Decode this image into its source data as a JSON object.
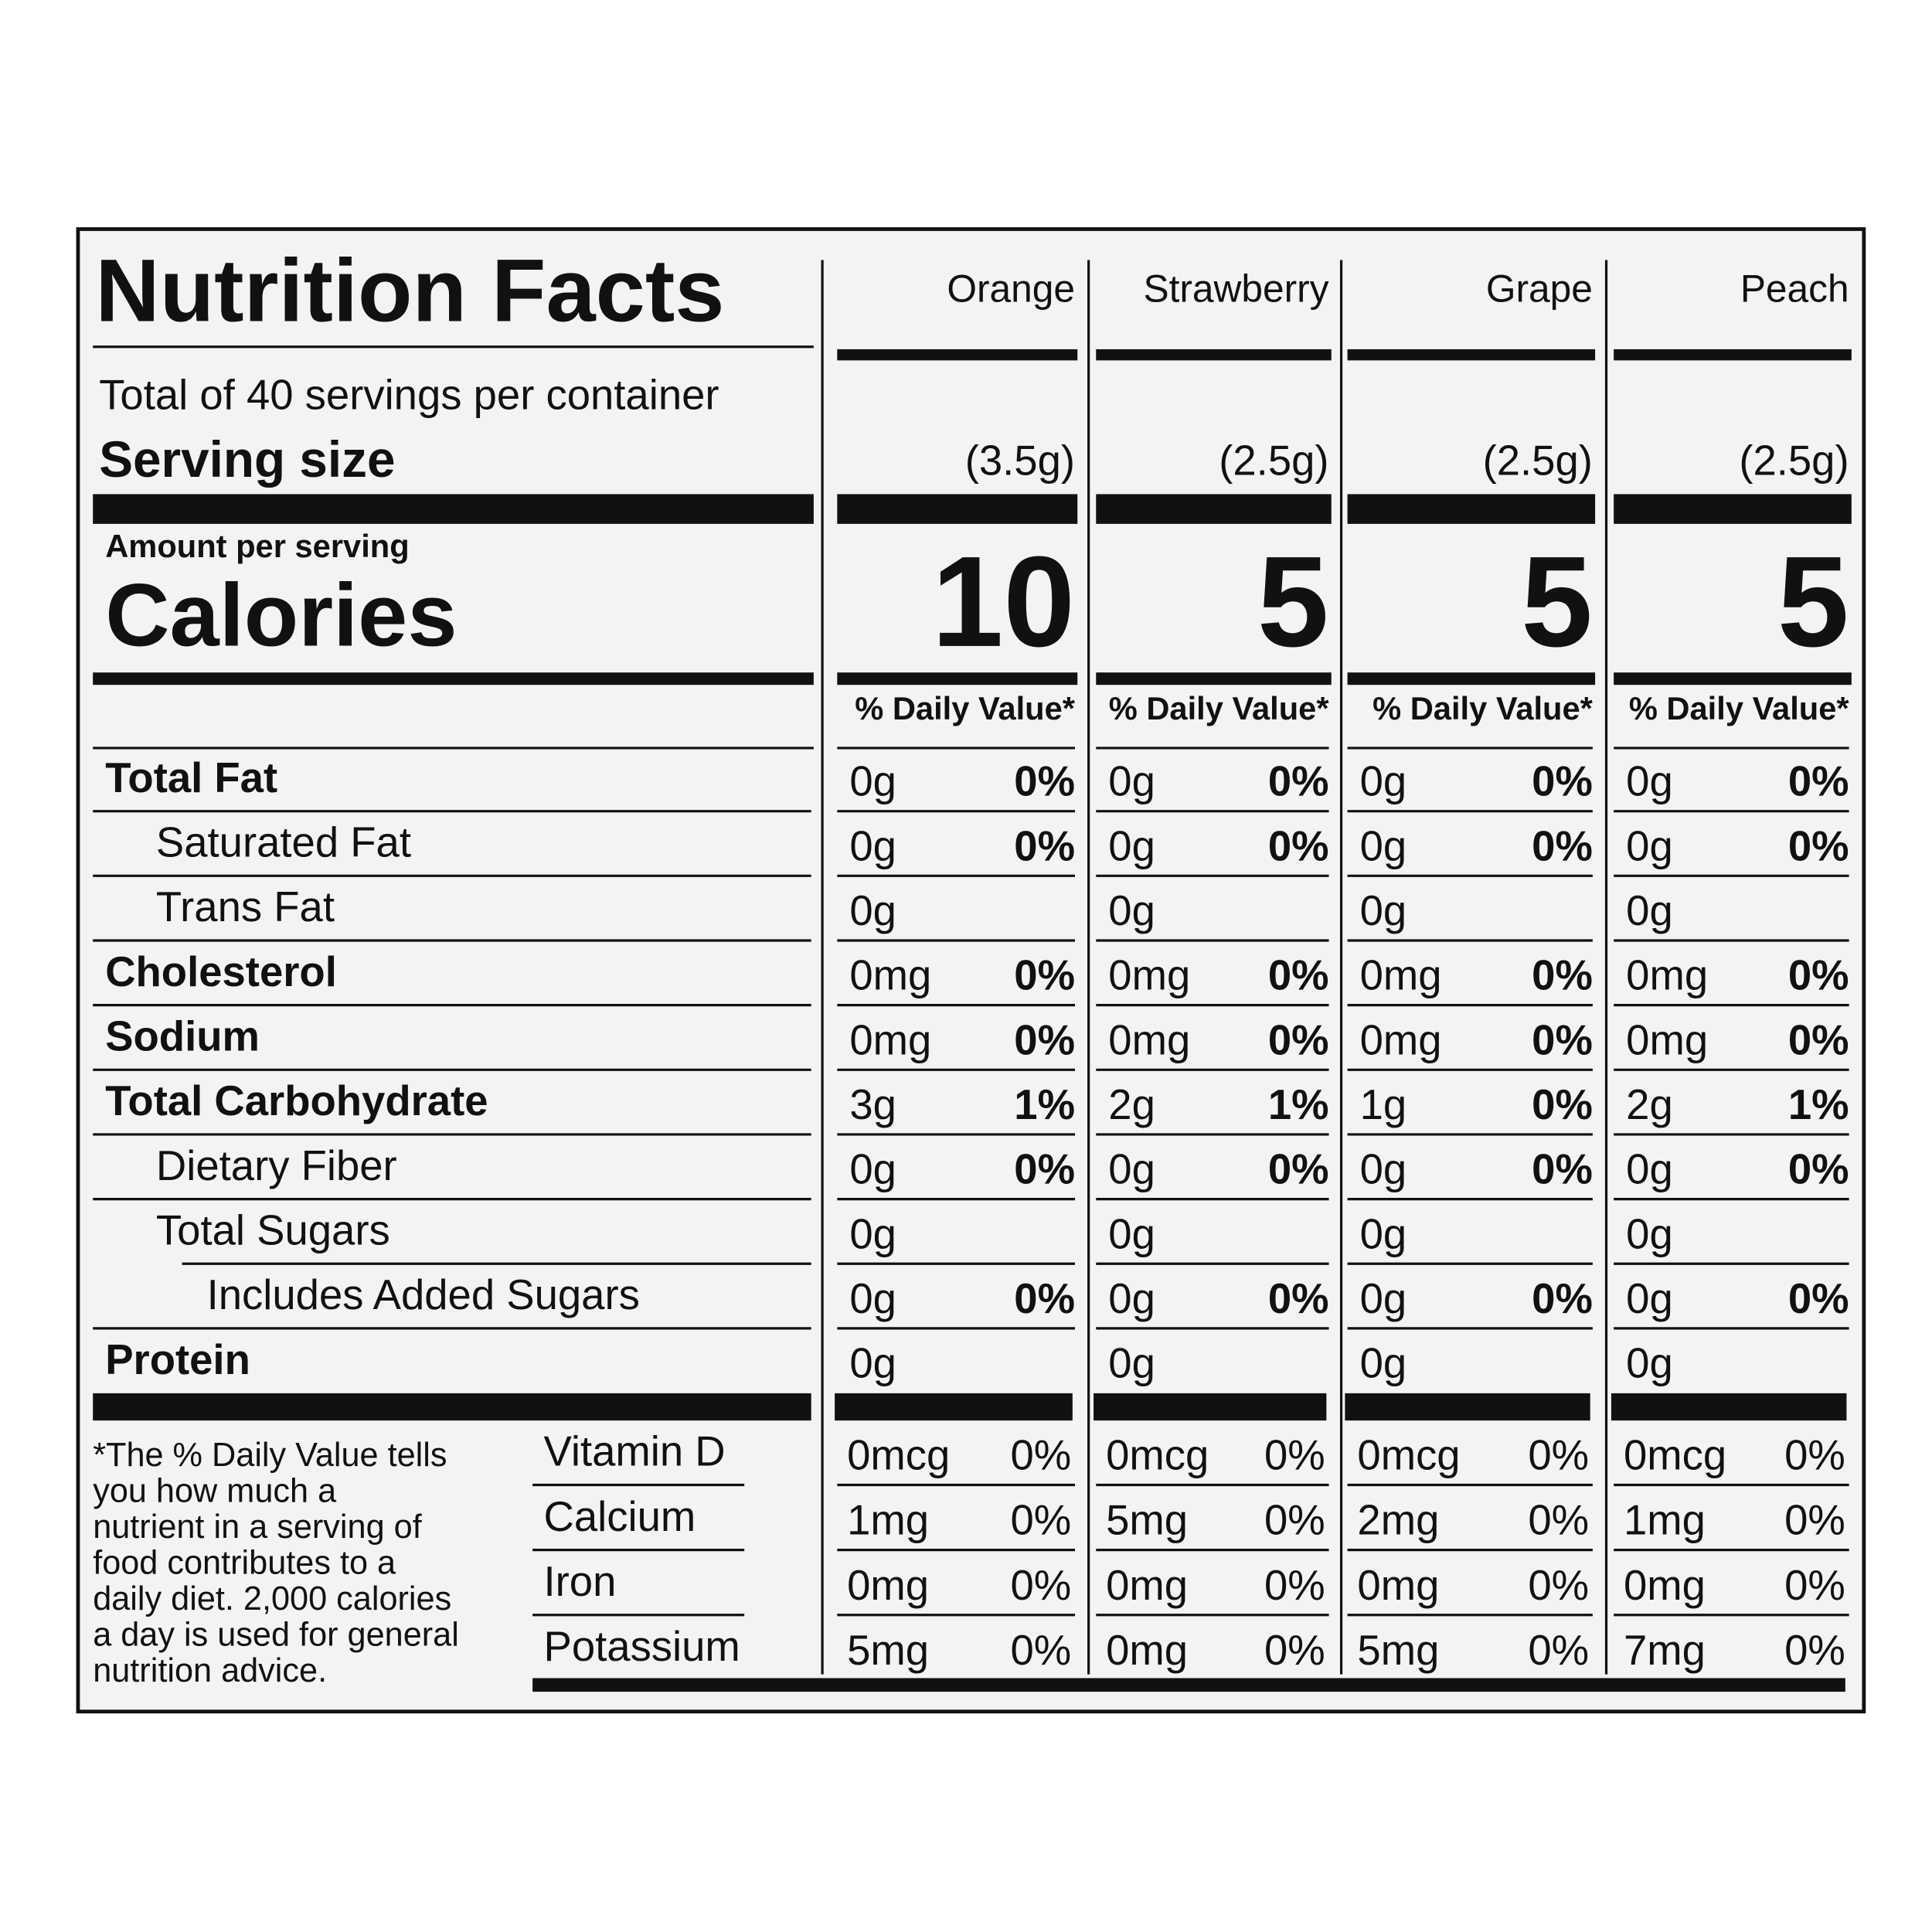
{
  "title": "Nutrition Facts",
  "servings": "Total of 40 servings per container",
  "serving_size_label": "Serving size",
  "amount_per_serving": "Amount per serving",
  "calories_label": "Calories",
  "daily_value_header": "% Daily Value*",
  "nutrient_labels": [
    "Total Fat",
    "Saturated Fat",
    "Trans Fat",
    "Cholesterol",
    "Sodium",
    "Total Carbohydrate",
    "Dietary Fiber",
    "Total Sugars",
    "Includes Added Sugars",
    "Protein"
  ],
  "vitamin_labels": [
    "Vitamin D",
    "Calcium",
    "Iron",
    "Potassium"
  ],
  "footnote": [
    "*The % Daily Value tells",
    "you how much a",
    "nutrient in a serving of",
    "food contributes to a",
    "daily diet. 2,000 calories",
    "a day is used for general",
    "nutrition advice."
  ],
  "columns": [
    {
      "name": "Orange",
      "serving_size": "(3.5g)",
      "calories": 10,
      "rows": [
        [
          "0g",
          "0%"
        ],
        [
          "0g",
          "0%"
        ],
        [
          "0g",
          null
        ],
        [
          "0mg",
          "0%"
        ],
        [
          "0mg",
          "0%"
        ],
        [
          "3g",
          "1%"
        ],
        [
          "0g",
          "0%"
        ],
        [
          "0g",
          null
        ],
        [
          "0g",
          "0%"
        ],
        [
          "0g",
          null
        ]
      ],
      "vitamins": [
        [
          "0mcg",
          "0%"
        ],
        [
          "1mg",
          "0%"
        ],
        [
          "0mg",
          "0%"
        ],
        [
          "5mg",
          "0%"
        ]
      ]
    },
    {
      "name": "Strawberry",
      "serving_size": "(2.5g)",
      "calories": 5,
      "rows": [
        [
          "0g",
          "0%"
        ],
        [
          "0g",
          "0%"
        ],
        [
          "0g",
          null
        ],
        [
          "0mg",
          "0%"
        ],
        [
          "0mg",
          "0%"
        ],
        [
          "2g",
          "1%"
        ],
        [
          "0g",
          "0%"
        ],
        [
          "0g",
          null
        ],
        [
          "0g",
          "0%"
        ],
        [
          "0g",
          null
        ]
      ],
      "vitamins": [
        [
          "0mcg",
          "0%"
        ],
        [
          "5mg",
          "0%"
        ],
        [
          "0mg",
          "0%"
        ],
        [
          "0mg",
          "0%"
        ]
      ]
    },
    {
      "name": "Grape",
      "serving_size": "(2.5g)",
      "calories": 5,
      "rows": [
        [
          "0g",
          "0%"
        ],
        [
          "0g",
          "0%"
        ],
        [
          "0g",
          null
        ],
        [
          "0mg",
          "0%"
        ],
        [
          "0mg",
          "0%"
        ],
        [
          "1g",
          "0%"
        ],
        [
          "0g",
          "0%"
        ],
        [
          "0g",
          null
        ],
        [
          "0g",
          "0%"
        ],
        [
          "0g",
          null
        ]
      ],
      "vitamins": [
        [
          "0mcg",
          "0%"
        ],
        [
          "2mg",
          "0%"
        ],
        [
          "0mg",
          "0%"
        ],
        [
          "5mg",
          "0%"
        ]
      ]
    },
    {
      "name": "Peach",
      "serving_size": "(2.5g)",
      "calories": 5,
      "rows": [
        [
          "0g",
          "0%"
        ],
        [
          "0g",
          "0%"
        ],
        [
          "0g",
          null
        ],
        [
          "0mg",
          "0%"
        ],
        [
          "0mg",
          "0%"
        ],
        [
          "2g",
          "1%"
        ],
        [
          "0g",
          "0%"
        ],
        [
          "0g",
          null
        ],
        [
          "0g",
          "0%"
        ],
        [
          "0g",
          null
        ]
      ],
      "vitamins": [
        [
          "0mcg",
          "0%"
        ],
        [
          "1mg",
          "0%"
        ],
        [
          "0mg",
          "0%"
        ],
        [
          "7mg",
          "0%"
        ]
      ]
    }
  ]
}
